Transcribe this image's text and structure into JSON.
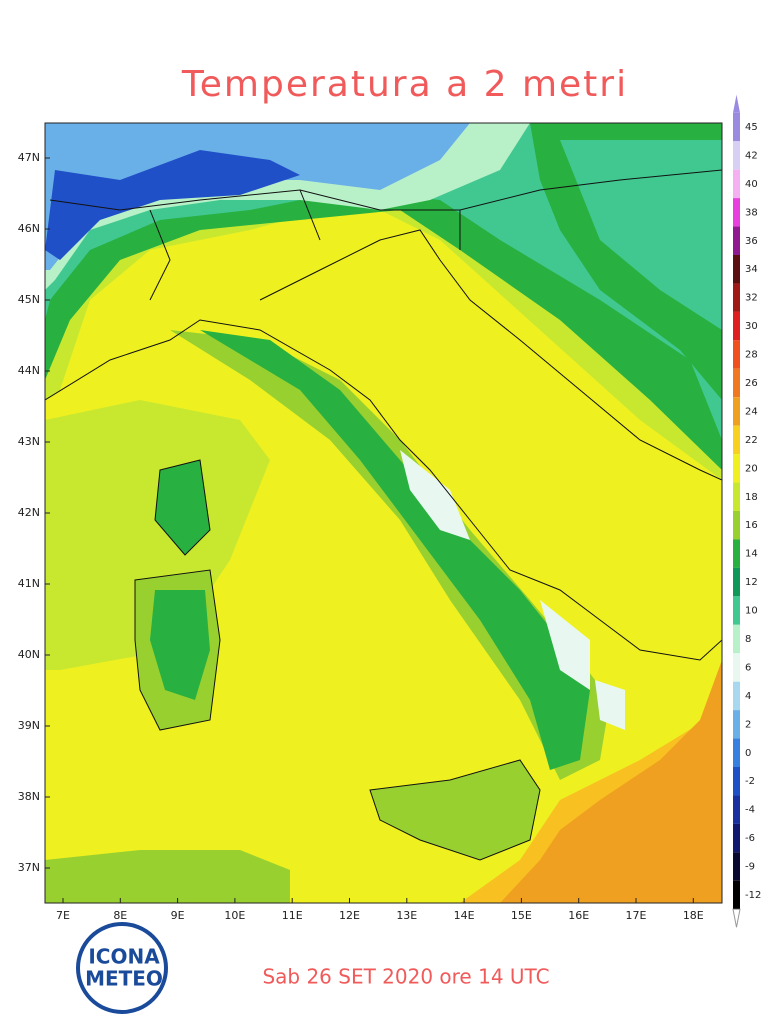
{
  "title": "Temperatura a 2 metri",
  "caption": "Sab 26 SET 2020 ore 14 UTC",
  "logo": {
    "line1": "ICONA",
    "line2": "METEO"
  },
  "map": {
    "lat_labels": [
      "47N",
      "46N",
      "45N",
      "44N",
      "43N",
      "42N",
      "41N",
      "40N",
      "39N",
      "38N",
      "37N"
    ],
    "lon_labels": [
      "7E",
      "8E",
      "9E",
      "10E",
      "11E",
      "12E",
      "13E",
      "14E",
      "15E",
      "16E",
      "17E",
      "18E"
    ]
  },
  "legend": {
    "levels": [
      45,
      42,
      40,
      38,
      36,
      34,
      32,
      30,
      28,
      26,
      24,
      22,
      20,
      18,
      16,
      14,
      12,
      10,
      8,
      6,
      4,
      2,
      0,
      -2,
      -4,
      -6,
      -9,
      -12
    ],
    "colors": [
      "#9a8ae0",
      "#d8d0f4",
      "#f4b0f0",
      "#e840e0",
      "#901890",
      "#5a1010",
      "#a01818",
      "#e02020",
      "#f05020",
      "#f07820",
      "#f0a020",
      "#f8d020",
      "#f0f020",
      "#c8e830",
      "#98d030",
      "#28b040",
      "#109858",
      "#40c890",
      "#b8f0c8",
      "#e8f8f0",
      "#a8d8f0",
      "#6ab0e8",
      "#3880e0",
      "#2050c8",
      "#1830a0",
      "#101870",
      "#080830",
      "#000000"
    ]
  }
}
